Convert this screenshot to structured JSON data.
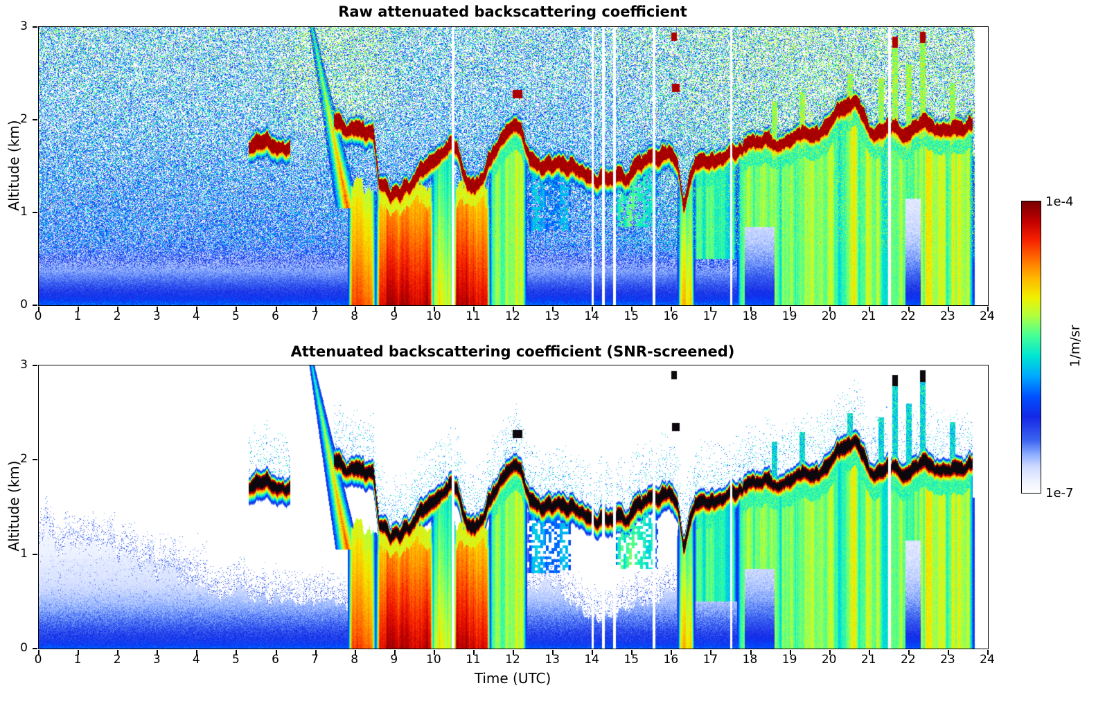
{
  "chart_data": {
    "type": "heatmap",
    "x": {
      "label": "Time (UTC)",
      "min": 0,
      "max": 24,
      "ticks": [
        0,
        1,
        2,
        3,
        4,
        5,
        6,
        7,
        8,
        9,
        10,
        11,
        12,
        13,
        14,
        15,
        16,
        17,
        18,
        19,
        20,
        21,
        22,
        23,
        24
      ]
    },
    "y": {
      "label": "Altitude (km)",
      "min": 0,
      "max": 3,
      "ticks": [
        0,
        1,
        2,
        3
      ]
    },
    "color": {
      "label": "1/m/sr",
      "scale": "log",
      "min": 1e-07,
      "max": 0.0001,
      "min_label": "1e-7",
      "max_label": "1e-4",
      "stops": [
        [
          0,
          "#ffffff"
        ],
        [
          0.045,
          "#eaf0ff"
        ],
        [
          0.09,
          "#cdd9ff"
        ],
        [
          0.13,
          "#8fb0ff"
        ],
        [
          0.18,
          "#3c64f0"
        ],
        [
          0.26,
          "#1428e6"
        ],
        [
          0.33,
          "#0050ff"
        ],
        [
          0.4,
          "#00a8ff"
        ],
        [
          0.47,
          "#00e6d2"
        ],
        [
          0.54,
          "#46ff96"
        ],
        [
          0.61,
          "#b4ff3c"
        ],
        [
          0.67,
          "#f0f000"
        ],
        [
          0.74,
          "#ffb400"
        ],
        [
          0.81,
          "#ff6400"
        ],
        [
          0.87,
          "#f51e00"
        ],
        [
          0.93,
          "#c30000"
        ],
        [
          1,
          "#780000"
        ]
      ]
    },
    "panels": [
      {
        "id": "raw",
        "title": "Raw attenuated backscattering coefficient",
        "ylabel": "Altitude (km)",
        "screened": false
      },
      {
        "id": "screened",
        "title": "Attenuated backscattering coefficient (SNR-screened)",
        "ylabel": "Altitude (km)",
        "screened": true
      }
    ],
    "features": {
      "t_end": 23.65,
      "gaps": [
        10.47,
        14.0,
        14.27,
        14.55,
        15.55,
        17.5,
        21.5
      ],
      "cloud_segments": [
        [
          [
            5.3,
            1.62
          ],
          [
            5.7,
            1.68
          ],
          [
            6.0,
            1.66
          ],
          [
            6.35,
            1.62
          ]
        ],
        [
          [
            7.45,
            1.92
          ],
          [
            7.8,
            1.86
          ],
          [
            8.1,
            1.82
          ],
          [
            8.45,
            1.78
          ],
          [
            8.6,
            1.25
          ],
          [
            8.9,
            1.12
          ],
          [
            9.2,
            1.16
          ],
          [
            9.5,
            1.3
          ],
          [
            9.8,
            1.42
          ],
          [
            10.0,
            1.5
          ],
          [
            10.3,
            1.62
          ],
          [
            10.45,
            1.7
          ],
          [
            10.6,
            1.6
          ],
          [
            10.8,
            1.3
          ],
          [
            11.0,
            1.22
          ],
          [
            11.2,
            1.32
          ],
          [
            11.45,
            1.55
          ],
          [
            11.7,
            1.75
          ],
          [
            12.0,
            1.88
          ],
          [
            12.2,
            1.82
          ],
          [
            12.4,
            1.5
          ],
          [
            12.7,
            1.42
          ],
          [
            13.0,
            1.45
          ],
          [
            13.3,
            1.44
          ],
          [
            13.6,
            1.42
          ],
          [
            13.9,
            1.3
          ],
          [
            14.1,
            1.28
          ],
          [
            14.35,
            1.3
          ],
          [
            14.6,
            1.33
          ],
          [
            14.85,
            1.28
          ],
          [
            15.1,
            1.44
          ],
          [
            15.4,
            1.55
          ],
          [
            15.7,
            1.52
          ],
          [
            15.95,
            1.56
          ],
          [
            16.15,
            1.45
          ],
          [
            16.3,
            1.0
          ],
          [
            16.45,
            1.3
          ],
          [
            16.6,
            1.5
          ],
          [
            16.9,
            1.48
          ],
          [
            17.2,
            1.5
          ],
          [
            17.5,
            1.56
          ],
          [
            17.8,
            1.62
          ],
          [
            18.1,
            1.7
          ],
          [
            18.4,
            1.72
          ],
          [
            18.7,
            1.68
          ],
          [
            19.0,
            1.74
          ],
          [
            19.3,
            1.82
          ],
          [
            19.6,
            1.74
          ],
          [
            19.9,
            1.85
          ],
          [
            20.2,
            2.05
          ],
          [
            20.5,
            2.12
          ],
          [
            20.7,
            2.1
          ],
          [
            20.9,
            1.9
          ],
          [
            21.1,
            1.78
          ],
          [
            21.35,
            1.82
          ],
          [
            21.6,
            1.85
          ],
          [
            21.85,
            1.78
          ],
          [
            22.1,
            1.82
          ],
          [
            22.35,
            1.95
          ],
          [
            22.6,
            1.88
          ],
          [
            22.85,
            1.8
          ],
          [
            23.1,
            1.82
          ],
          [
            23.35,
            1.86
          ],
          [
            23.6,
            1.88
          ]
        ]
      ],
      "rain": [
        {
          "t0": 7.85,
          "t1": 8.48,
          "top": 1.3,
          "i": 0.88
        },
        {
          "t0": 8.55,
          "t1": 9.95,
          "top": 1.3,
          "i": 1.0
        },
        {
          "t0": 9.95,
          "t1": 10.45,
          "top": 1.62,
          "i": 0.7
        },
        {
          "t0": 10.5,
          "t1": 11.38,
          "top": 1.3,
          "i": 1.0
        },
        {
          "t0": 16.18,
          "t1": 16.55,
          "top": 1.3,
          "i": 0.78
        }
      ],
      "virga": {
        "t0": 6.9,
        "z0": 3.0,
        "t1": 7.8,
        "z1": 1.05,
        "w0": 0.07,
        "w1": 0.3
      },
      "subcloud": [
        {
          "t0": 11.38,
          "t1": 12.35,
          "base": 0,
          "amp": 0.58
        },
        {
          "t0": 12.35,
          "t1": 13.45,
          "base": 0.8,
          "amp": 0.4,
          "patchy": true
        },
        {
          "t0": 14.55,
          "t1": 15.65,
          "base": 0.85,
          "amp": 0.5,
          "patchy": true
        },
        {
          "t0": 16.55,
          "t1": 17.65,
          "base": 0.5,
          "amp": 0.52
        },
        {
          "t0": 17.65,
          "t1": 23.65,
          "base": 0,
          "amp": 0.58
        }
      ],
      "dim": [
        {
          "t0": 17.85,
          "t1": 18.6,
          "ztop": 0.85
        },
        {
          "t0": 21.9,
          "t1": 22.3,
          "ztop": 1.15
        }
      ],
      "towers": [
        {
          "t": 18.6,
          "top": 2.2
        },
        {
          "t": 19.3,
          "top": 2.3
        },
        {
          "t": 20.5,
          "top": 2.5
        },
        {
          "t": 21.3,
          "top": 2.45
        },
        {
          "t": 21.65,
          "top": 2.9,
          "dark": true
        },
        {
          "t": 22.0,
          "top": 2.6
        },
        {
          "t": 22.35,
          "top": 2.95,
          "dark": true
        },
        {
          "t": 23.1,
          "top": 2.4
        }
      ],
      "spots": [
        {
          "t": 12.1,
          "z": 2.28,
          "w": 0.12
        },
        {
          "t": 16.1,
          "z": 2.35,
          "w": 0.1
        },
        {
          "t": 16.05,
          "z": 2.9,
          "w": 0.07
        }
      ],
      "blh": [
        [
          0,
          1.15
        ],
        [
          1,
          1.05
        ],
        [
          2,
          1.0
        ],
        [
          3,
          0.85
        ],
        [
          3.8,
          0.72
        ],
        [
          4.5,
          0.62
        ],
        [
          5.5,
          0.56
        ],
        [
          6.5,
          0.5
        ],
        [
          7.5,
          0.46
        ],
        [
          8.5,
          0.42
        ],
        [
          11.5,
          0.42
        ],
        [
          12.2,
          0.55
        ],
        [
          12.8,
          0.75
        ],
        [
          13.3,
          0.6
        ],
        [
          13.8,
          0.35
        ],
        [
          14.3,
          0.32
        ],
        [
          15,
          0.45
        ],
        [
          15.5,
          0.55
        ],
        [
          16,
          0.6
        ],
        [
          17,
          0.68
        ],
        [
          18,
          0.78
        ],
        [
          19,
          0.8
        ],
        [
          20,
          0.85
        ],
        [
          21,
          0.88
        ],
        [
          22,
          0.9
        ],
        [
          23,
          0.95
        ],
        [
          23.65,
          1.0
        ]
      ]
    }
  }
}
